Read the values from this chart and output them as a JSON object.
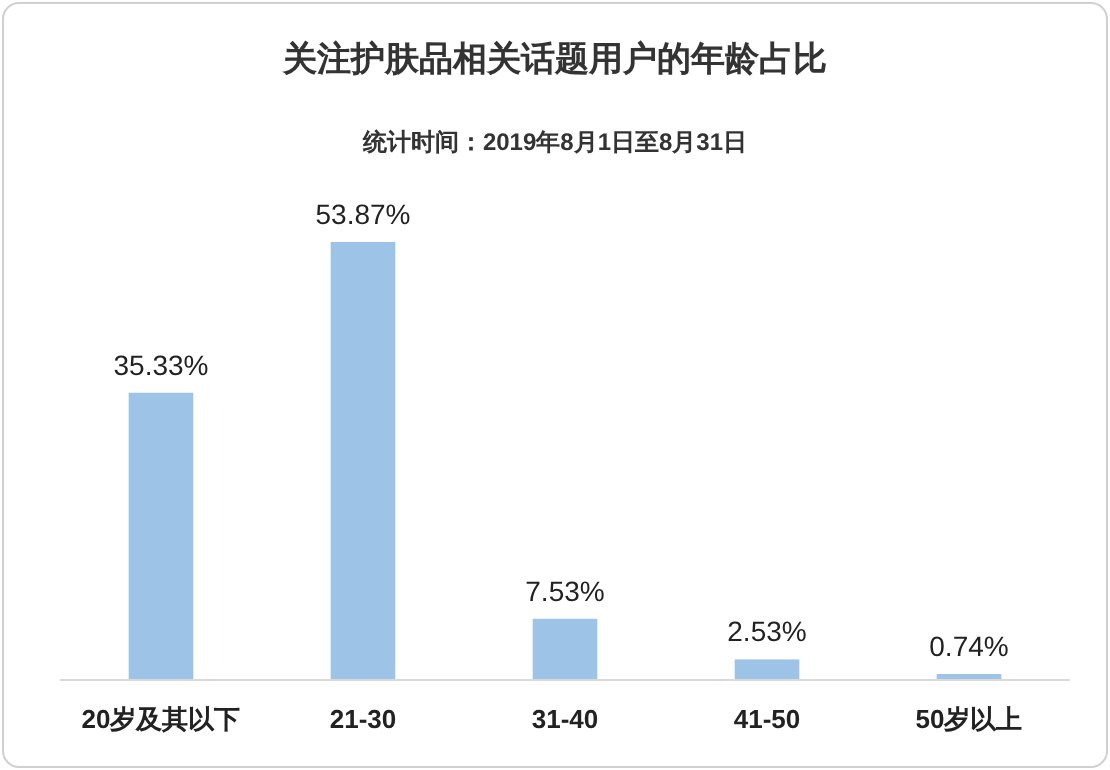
{
  "chart_data": {
    "type": "bar",
    "title": "关注护肤品相关话题用户的年龄占比",
    "subtitle": "统计时间：2019年8月1日至8月31日",
    "categories": [
      "20岁及其以下",
      "21-30",
      "31-40",
      "41-50",
      "50岁以上"
    ],
    "values": [
      35.33,
      53.87,
      7.53,
      2.53,
      0.74
    ],
    "value_labels": [
      "35.33%",
      "53.87%",
      "7.53%",
      "2.53%",
      "0.74%"
    ],
    "color": "#9dc3e6"
  }
}
